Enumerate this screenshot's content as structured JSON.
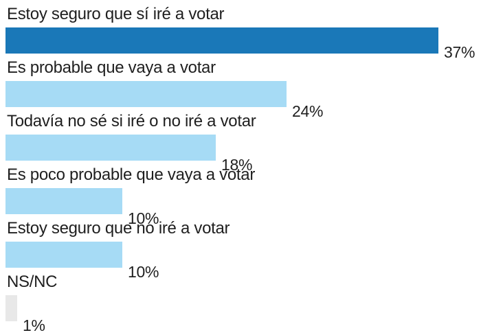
{
  "chart_data": {
    "type": "bar",
    "orientation": "horizontal",
    "categories": [
      "Estoy seguro que sí iré a votar",
      "Es probable que vaya a votar",
      "Todavía no sé si iré o no iré a votar",
      "Es poco probable que vaya a votar",
      "Estoy seguro que no iré a votar",
      "NS/NC"
    ],
    "values": [
      37,
      24,
      18,
      10,
      10,
      1
    ],
    "value_labels": [
      "37%",
      "24%",
      "18%",
      "10%",
      "10%",
      "1%"
    ],
    "unit": "%",
    "xlim": [
      0,
      37
    ],
    "grid": false,
    "legend": "none",
    "colors": [
      "#1a78b8",
      "#a6dbf5",
      "#a6dbf5",
      "#a6dbf5",
      "#a6dbf5",
      "#e8e8e8"
    ]
  }
}
